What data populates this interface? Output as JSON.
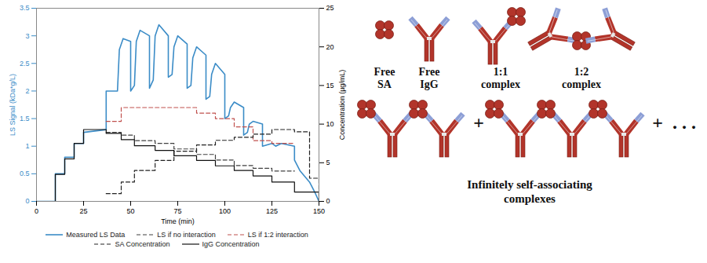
{
  "chart_data": {
    "type": "line",
    "xlabel": "Time (min)",
    "ylabel": "LS Signal (kDa*g/L)",
    "y2label": "Concentration (µg/mL)",
    "xlim": [
      0,
      150
    ],
    "xticks": [
      0,
      25,
      50,
      75,
      100,
      125,
      150
    ],
    "ylim": [
      0,
      3.5
    ],
    "yticks": [
      0,
      0.5,
      1,
      1.5,
      2,
      2.5,
      3,
      3.5
    ],
    "y2lim": [
      0,
      25
    ],
    "y2ticks": [
      0,
      5,
      10,
      15,
      20,
      25
    ],
    "grid": false,
    "legend": "bottom",
    "series": [
      {
        "name": "Measured LS Data",
        "color": "#3b8cc7",
        "type": "line",
        "line_style": "solid",
        "x": [
          0,
          10,
          10,
          15,
          15,
          20,
          20,
          25,
          25,
          37,
          37,
          43,
          44,
          46,
          50,
          50,
          52,
          53,
          55,
          60,
          60,
          62,
          63,
          65,
          70,
          70,
          72,
          73,
          75,
          80,
          80,
          82,
          83,
          85,
          90,
          90,
          92,
          93,
          95,
          100,
          100,
          102,
          103,
          105,
          110,
          110,
          112,
          113,
          115,
          120,
          120,
          125,
          127,
          130,
          137,
          137,
          140,
          145,
          148,
          150
        ],
        "values": [
          0,
          0,
          0.5,
          0.5,
          0.8,
          0.8,
          1.05,
          1.05,
          1.25,
          1.3,
          2.0,
          2.0,
          2.75,
          2.95,
          2.9,
          2.0,
          2.1,
          2.9,
          3.1,
          3.0,
          2.05,
          2.2,
          3.0,
          3.2,
          3.0,
          2.25,
          2.3,
          2.8,
          3.0,
          2.85,
          2.05,
          2.1,
          2.6,
          2.8,
          2.65,
          1.85,
          1.9,
          2.3,
          2.5,
          2.3,
          1.5,
          1.55,
          1.7,
          1.8,
          1.7,
          1.2,
          1.25,
          1.4,
          1.45,
          1.4,
          1.0,
          1.05,
          1.0,
          1.05,
          1.0,
          0.75,
          0.55,
          0.35,
          0.15,
          0
        ]
      },
      {
        "name": "LS if no interaction",
        "color": "#404040",
        "type": "step",
        "line_style": "dashed",
        "x": [
          37,
          45,
          52,
          63,
          73,
          85,
          95,
          105,
          115,
          125,
          137
        ],
        "values": [
          1.25,
          1.2,
          1.1,
          1.05,
          0.95,
          0.85,
          0.75,
          0.65,
          0.6,
          0.55,
          0.55
        ]
      },
      {
        "name": "LS if 1:2 interaction",
        "color": "#c0504d",
        "type": "step",
        "line_style": "dashed",
        "x": [
          37,
          45,
          52,
          63,
          73,
          85,
          95,
          105,
          115,
          125,
          137
        ],
        "values": [
          1.45,
          1.7,
          1.7,
          1.7,
          1.7,
          1.6,
          1.5,
          1.35,
          1.1,
          1.05,
          1.05
        ]
      },
      {
        "name": "SA Concentration",
        "color": "#222222",
        "type": "step",
        "line_style": "dashed",
        "axis": "y2",
        "x": [
          37,
          45,
          52,
          63,
          73,
          85,
          95,
          105,
          115,
          125,
          137,
          145,
          150
        ],
        "values": [
          1,
          2.5,
          4,
          5.3,
          6.5,
          7.3,
          7.9,
          8.3,
          8.7,
          9.3,
          9,
          3,
          0
        ]
      },
      {
        "name": "IgG Concentration",
        "color": "#111111",
        "type": "step",
        "line_style": "solid",
        "axis": "y2",
        "x": [
          0,
          10,
          15,
          20,
          25,
          37,
          45,
          52,
          63,
          73,
          85,
          95,
          105,
          115,
          125,
          137,
          150
        ],
        "values": [
          0,
          3.5,
          5.5,
          7.5,
          9.3,
          8.8,
          8,
          7.2,
          6.6,
          5.9,
          5.3,
          4.6,
          4,
          3.3,
          2.5,
          1.2,
          0
        ]
      }
    ]
  },
  "diagram": {
    "items": [
      {
        "label": "Free SA"
      },
      {
        "label": "Free IgG"
      },
      {
        "label": "1:1 complex"
      },
      {
        "label": "1:2 complex"
      }
    ],
    "chain_label": "Infinitely self-associating complexes",
    "connector": "+",
    "ellipsis": ". . ."
  }
}
